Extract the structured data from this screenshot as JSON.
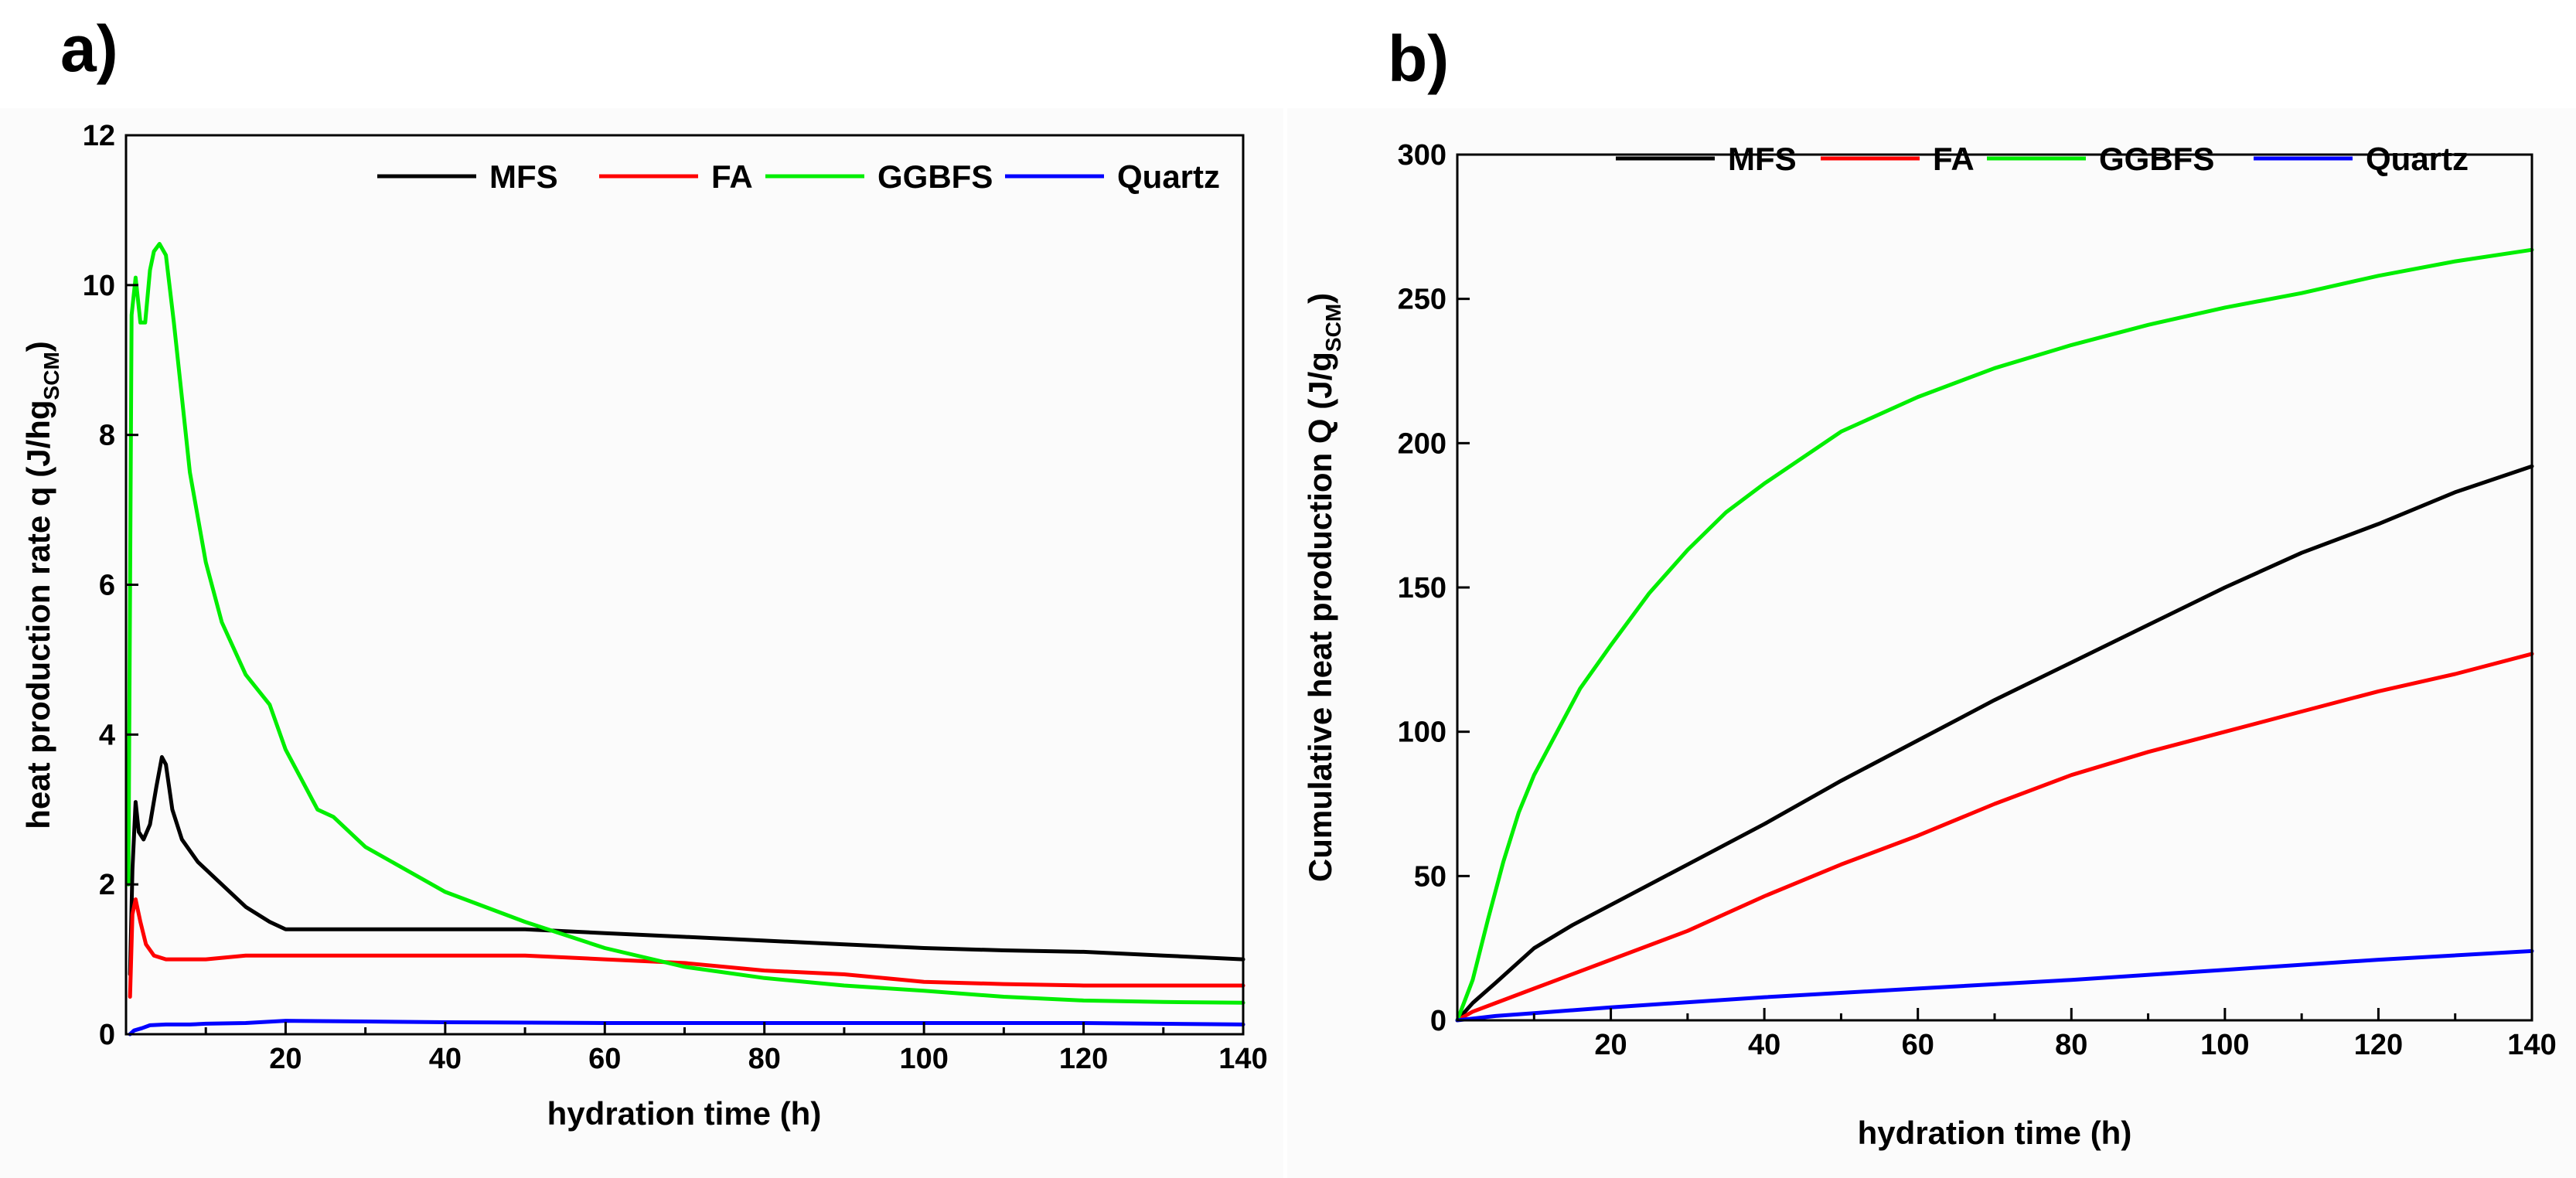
{
  "figure": {
    "panels": [
      "a)",
      "b)"
    ]
  },
  "chart_data": [
    {
      "id": "a",
      "type": "line",
      "panel_label": "a)",
      "title": "",
      "xlabel": "hydration time (h)",
      "ylabel_main": "heat production rate q (J/hg",
      "ylabel_sub": "SCM",
      "ylabel_close": ")",
      "xlim": [
        0,
        140
      ],
      "ylim": [
        0,
        12
      ],
      "xticks": [
        20,
        40,
        60,
        80,
        100,
        120,
        140
      ],
      "yticks": [
        0,
        2,
        4,
        6,
        8,
        10,
        12
      ],
      "legend_position": "top",
      "grid": false,
      "series": [
        {
          "name": "MFS",
          "color": "#000000",
          "x": [
            0.5,
            0.8,
            1.2,
            1.6,
            2.2,
            3,
            3.8,
            4.5,
            5,
            5.8,
            7,
            9,
            12,
            15,
            18,
            20,
            25,
            30,
            40,
            50,
            60,
            70,
            80,
            90,
            100,
            110,
            120,
            130,
            140
          ],
          "y": [
            0.8,
            2.2,
            3.1,
            2.7,
            2.6,
            2.8,
            3.3,
            3.7,
            3.6,
            3.0,
            2.6,
            2.3,
            2.0,
            1.7,
            1.5,
            1.4,
            1.4,
            1.4,
            1.4,
            1.4,
            1.35,
            1.3,
            1.25,
            1.2,
            1.15,
            1.12,
            1.1,
            1.05,
            1.0
          ]
        },
        {
          "name": "FA",
          "color": "#ff0000",
          "x": [
            0.5,
            0.8,
            1.2,
            1.8,
            2.5,
            3.5,
            5,
            7,
            10,
            15,
            20,
            25,
            30,
            40,
            50,
            60,
            70,
            80,
            90,
            100,
            110,
            120,
            130,
            140
          ],
          "y": [
            0.5,
            1.6,
            1.8,
            1.5,
            1.2,
            1.05,
            1.0,
            1.0,
            1.0,
            1.05,
            1.05,
            1.05,
            1.05,
            1.05,
            1.05,
            1.0,
            0.95,
            0.85,
            0.8,
            0.7,
            0.67,
            0.65,
            0.65,
            0.65
          ]
        },
        {
          "name": "GGBFS",
          "color": "#00ee00",
          "x": [
            0.3,
            0.7,
            1.2,
            1.8,
            2.4,
            3,
            3.5,
            4.2,
            5,
            6,
            7,
            8,
            10,
            12,
            15,
            18,
            20,
            22,
            24,
            26,
            30,
            35,
            40,
            50,
            60,
            70,
            80,
            90,
            100,
            110,
            120,
            130,
            140
          ],
          "y": [
            2.0,
            9.6,
            10.1,
            9.5,
            9.5,
            10.2,
            10.45,
            10.55,
            10.4,
            9.5,
            8.5,
            7.5,
            6.3,
            5.5,
            4.8,
            4.4,
            3.8,
            3.4,
            3.0,
            2.9,
            2.5,
            2.2,
            1.9,
            1.5,
            1.15,
            0.9,
            0.75,
            0.65,
            0.58,
            0.5,
            0.45,
            0.43,
            0.42
          ]
        },
        {
          "name": "Quartz",
          "color": "#0000ff",
          "x": [
            0.5,
            1,
            2,
            3,
            5,
            8,
            10,
            15,
            20,
            30,
            40,
            60,
            80,
            100,
            120,
            140
          ],
          "y": [
            0.0,
            0.05,
            0.08,
            0.12,
            0.13,
            0.13,
            0.14,
            0.15,
            0.18,
            0.17,
            0.16,
            0.15,
            0.15,
            0.15,
            0.15,
            0.13
          ]
        }
      ]
    },
    {
      "id": "b",
      "type": "line",
      "panel_label": "b)",
      "title": "",
      "xlabel": "hydration time (h)",
      "ylabel_main": "Cumulative heat production Q (J/g",
      "ylabel_sub": "SCM",
      "ylabel_close": ")",
      "xlim": [
        0,
        140
      ],
      "ylim": [
        0,
        300
      ],
      "xticks": [
        20,
        40,
        60,
        80,
        100,
        120,
        140
      ],
      "yticks": [
        0,
        50,
        100,
        150,
        200,
        250,
        300
      ],
      "legend_position": "top",
      "grid": false,
      "series": [
        {
          "name": "MFS",
          "color": "#000000",
          "x": [
            0,
            2,
            5,
            10,
            15,
            20,
            30,
            40,
            50,
            60,
            70,
            80,
            90,
            100,
            110,
            120,
            130,
            140
          ],
          "y": [
            0,
            6,
            13,
            25,
            33,
            40,
            54,
            68,
            83,
            97,
            111,
            124,
            137,
            150,
            162,
            172,
            183,
            192
          ]
        },
        {
          "name": "FA",
          "color": "#ff0000",
          "x": [
            0,
            2,
            5,
            10,
            15,
            20,
            30,
            40,
            50,
            60,
            70,
            80,
            90,
            100,
            110,
            120,
            130,
            140
          ],
          "y": [
            0,
            3,
            6,
            11,
            16,
            21,
            31,
            43,
            54,
            64,
            75,
            85,
            93,
            100,
            107,
            114,
            120,
            127
          ]
        },
        {
          "name": "GGBFS",
          "color": "#00ee00",
          "x": [
            0,
            2,
            4,
            6,
            8,
            10,
            13,
            16,
            20,
            25,
            30,
            35,
            40,
            50,
            60,
            70,
            80,
            90,
            100,
            110,
            120,
            130,
            140
          ],
          "y": [
            0,
            14,
            35,
            55,
            72,
            85,
            100,
            115,
            130,
            148,
            163,
            176,
            186,
            204,
            216,
            226,
            234,
            241,
            247,
            252,
            258,
            263,
            267
          ]
        },
        {
          "name": "Quartz",
          "color": "#0000ff",
          "x": [
            0,
            5,
            10,
            20,
            40,
            60,
            80,
            100,
            120,
            140
          ],
          "y": [
            0,
            1.5,
            2.5,
            4.5,
            8,
            11,
            14,
            17.5,
            21,
            24
          ]
        }
      ]
    }
  ]
}
